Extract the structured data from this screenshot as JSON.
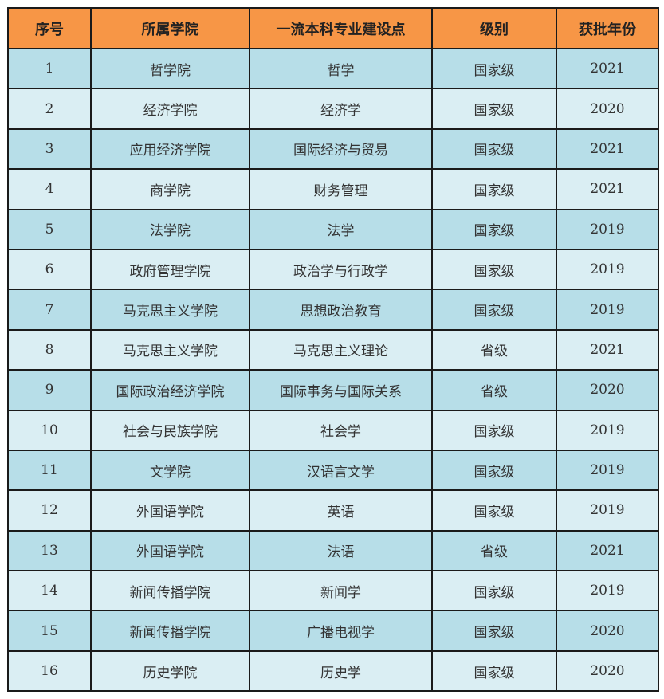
{
  "headers": [
    "序号",
    "所属学院",
    "一流本科专业建设点",
    "级别",
    "获批年份"
  ],
  "colors": {
    "header": "#F79646",
    "row_odd": "#B7DEE8",
    "row_even": "#DAEEF3"
  },
  "rows": [
    [
      "1",
      "哲学院",
      "哲学",
      "国家级",
      "2021"
    ],
    [
      "2",
      "经济学院",
      "经济学",
      "国家级",
      "2020"
    ],
    [
      "3",
      "应用经济学院",
      "国际经济与贸易",
      "国家级",
      "2021"
    ],
    [
      "4",
      "商学院",
      "财务管理",
      "国家级",
      "2021"
    ],
    [
      "5",
      "法学院",
      "法学",
      "国家级",
      "2019"
    ],
    [
      "6",
      "政府管理学院",
      "政治学与行政学",
      "国家级",
      "2019"
    ],
    [
      "7",
      "马克思主义学院",
      "思想政治教育",
      "国家级",
      "2019"
    ],
    [
      "8",
      "马克思主义学院",
      "马克思主义理论",
      "省级",
      "2021"
    ],
    [
      "9",
      "国际政治经济学院",
      "国际事务与国际关系",
      "省级",
      "2020"
    ],
    [
      "10",
      "社会与民族学院",
      "社会学",
      "国家级",
      "2019"
    ],
    [
      "11",
      "文学院",
      "汉语言文学",
      "国家级",
      "2019"
    ],
    [
      "12",
      "外国语学院",
      "英语",
      "国家级",
      "2019"
    ],
    [
      "13",
      "外国语学院",
      "法语",
      "省级",
      "2021"
    ],
    [
      "14",
      "新闻传播学院",
      "新闻学",
      "国家级",
      "2019"
    ],
    [
      "15",
      "新闻传播学院",
      "广播电视学",
      "国家级",
      "2020"
    ],
    [
      "16",
      "历史学院",
      "历史学",
      "国家级",
      "2020"
    ]
  ]
}
